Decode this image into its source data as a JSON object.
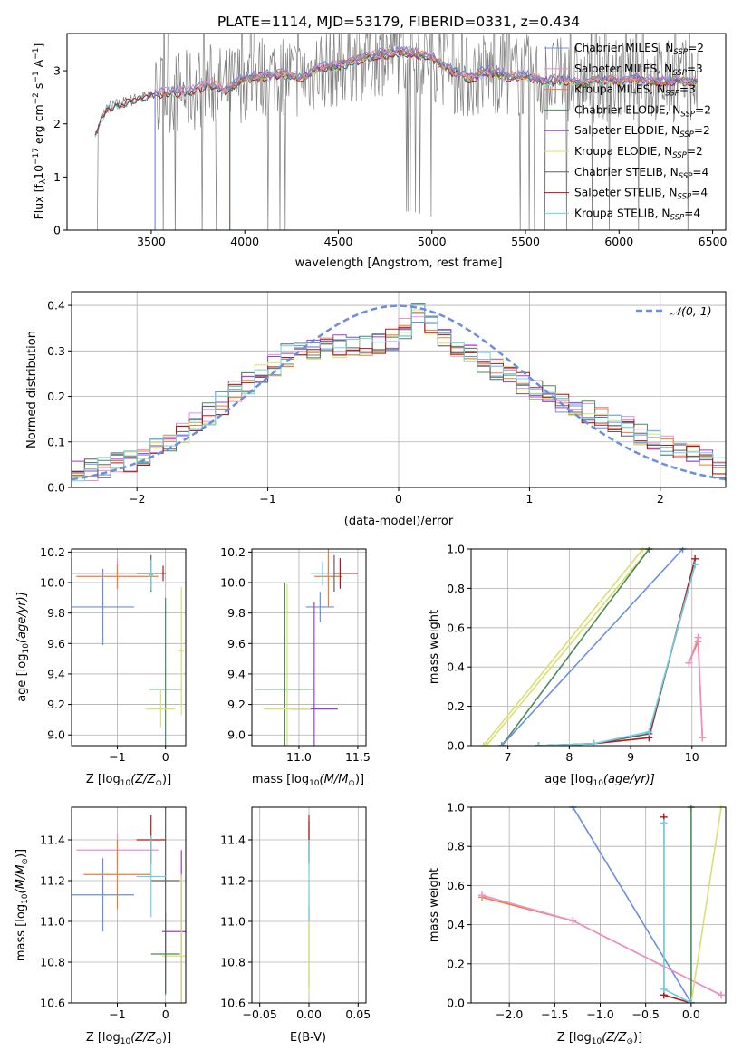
{
  "figure_title": "PLATE=1114, MJD=53179, FIBERID=0331, z=0.434",
  "series_colors": {
    "chabrier_miles": "#6a8fe0",
    "salpeter_miles": "#ee8fcc",
    "kroupa_miles": "#e8803a",
    "chabrier_elodie": "#4e8a5a",
    "salpeter_elodie": "#9a3fd0",
    "kroupa_elodie": "#d8e070",
    "chabrier_stelib": "#606060",
    "salpeter_stelib": "#b01818",
    "kroupa_stelib": "#70d0e0",
    "normal": "#6a8fe0",
    "data": "#808080"
  },
  "chart_data": [
    {
      "id": "spectrum",
      "type": "line",
      "xlabel": "wavelength [Angstrom, rest frame]",
      "ylabel": "Flux [f",
      "ylabel_sub": "λ",
      "ylabel_rest": "10",
      "ylabel_exp1": "−17",
      "ylabel_mid": " erg cm",
      "ylabel_exp2": "−2",
      "ylabel_mid2": " s",
      "ylabel_exp3": "−1",
      "ylabel_end": " A",
      "ylabel_exp4": "−1",
      "ylabel_close": "]",
      "xlim": [
        3050,
        6570
      ],
      "ylim": [
        0,
        3.7
      ],
      "xticks": [
        3500,
        4000,
        4500,
        5000,
        5500,
        6000,
        6500
      ],
      "yticks": [
        0,
        1,
        2,
        3
      ],
      "legend": [
        {
          "key": "chabrier_miles",
          "label": "Chabrier MILES, N",
          "sub": "SSP",
          "suffix": "=2"
        },
        {
          "key": "salpeter_miles",
          "label": "Salpeter MILES, N",
          "sub": "SSP",
          "suffix": "=3"
        },
        {
          "key": "kroupa_miles",
          "label": "Kroupa MILES, N",
          "sub": "SSP",
          "suffix": "=3"
        },
        {
          "key": "chabrier_elodie",
          "label": "Chabrier ELODIE, N",
          "sub": "SSP",
          "suffix": "=2"
        },
        {
          "key": "salpeter_elodie",
          "label": "Salpeter ELODIE, N",
          "sub": "SSP",
          "suffix": "=2"
        },
        {
          "key": "kroupa_elodie",
          "label": "Kroupa ELODIE, N",
          "sub": "SSP",
          "suffix": "=2"
        },
        {
          "key": "chabrier_stelib",
          "label": "Chabrier STELIB, N",
          "sub": "SSP",
          "suffix": "=4"
        },
        {
          "key": "salpeter_stelib",
          "label": "Salpeter STELIB, N",
          "sub": "SSP",
          "suffix": "=4"
        },
        {
          "key": "kroupa_stelib",
          "label": "Kroupa STELIB, N",
          "sub": "SSP",
          "suffix": "=4"
        }
      ],
      "continuum": [
        [
          3200,
          1.8
        ],
        [
          3260,
          2.3
        ],
        [
          3350,
          2.4
        ],
        [
          3450,
          2.5
        ],
        [
          3500,
          2.55
        ],
        [
          3600,
          2.6
        ],
        [
          3700,
          2.6
        ],
        [
          3800,
          2.75
        ],
        [
          3900,
          2.65
        ],
        [
          4000,
          2.85
        ],
        [
          4100,
          2.9
        ],
        [
          4200,
          2.95
        ],
        [
          4300,
          2.85
        ],
        [
          4400,
          3.05
        ],
        [
          4500,
          3.1
        ],
        [
          4600,
          3.2
        ],
        [
          4700,
          3.3
        ],
        [
          4800,
          3.35
        ],
        [
          4900,
          3.35
        ],
        [
          5000,
          3.25
        ],
        [
          5100,
          3.0
        ],
        [
          5200,
          2.85
        ],
        [
          5300,
          3.0
        ],
        [
          5400,
          2.9
        ],
        [
          5500,
          2.9
        ],
        [
          5600,
          2.8
        ],
        [
          5700,
          2.85
        ],
        [
          5800,
          2.75
        ],
        [
          5900,
          2.85
        ],
        [
          6000,
          2.8
        ],
        [
          6100,
          2.85
        ],
        [
          6200,
          2.8
        ],
        [
          6300,
          2.8
        ],
        [
          6420,
          2.8
        ]
      ]
    },
    {
      "id": "residuals",
      "type": "histogram",
      "xlabel": "(data-model)/error",
      "ylabel": "Normed distribution",
      "xlim": [
        -2.5,
        2.5
      ],
      "ylim": [
        0,
        0.43
      ],
      "xticks": [
        -2,
        -1,
        0,
        1,
        2
      ],
      "yticks": [
        0.0,
        0.1,
        0.2,
        0.3,
        0.4
      ],
      "legend_label": "𝒩(0, 1)",
      "envelope": [
        [
          -2.5,
          0.03
        ],
        [
          -2.0,
          0.06
        ],
        [
          -1.5,
          0.15
        ],
        [
          -1.2,
          0.22
        ],
        [
          -1.0,
          0.26
        ],
        [
          -0.8,
          0.3
        ],
        [
          -0.5,
          0.31
        ],
        [
          -0.2,
          0.31
        ],
        [
          0.0,
          0.33
        ],
        [
          0.15,
          0.38
        ],
        [
          0.4,
          0.31
        ],
        [
          0.7,
          0.27
        ],
        [
          1.0,
          0.22
        ],
        [
          1.3,
          0.18
        ],
        [
          1.6,
          0.15
        ],
        [
          2.0,
          0.1
        ],
        [
          2.5,
          0.04
        ]
      ]
    },
    {
      "id": "age_vs_Z",
      "type": "scatter",
      "xlabel": "Z [log",
      "xlabel_sub": "10",
      "xlabel_end": "(Z/Z",
      "xlabel_sun": "⊙",
      "xlabel_close": ")]",
      "ylabel": "age  [log",
      "ylabel_sub": "10",
      "ylabel_end": "(age/yr)]",
      "xlim": [
        -1.95,
        0.42
      ],
      "ylim": [
        8.93,
        10.22
      ],
      "xticks": [
        -1,
        0
      ],
      "yticks": [
        9.0,
        9.2,
        9.4,
        9.6,
        9.8,
        10.0,
        10.2
      ]
    },
    {
      "id": "age_vs_mass",
      "type": "scatter",
      "xlabel": "mass [log",
      "xlabel_sub": "10",
      "xlabel_end": "(M/M",
      "xlabel_sun": "⊙",
      "xlabel_close": ")]",
      "xlim": [
        10.6,
        11.57
      ],
      "ylim": [
        8.93,
        10.22
      ],
      "xticks": [
        11.0,
        11.5
      ],
      "yticks": [
        9.0,
        9.2,
        9.4,
        9.6,
        9.8,
        10.0,
        10.2
      ]
    },
    {
      "id": "weight_vs_age",
      "type": "line",
      "xlabel": "age  [log",
      "xlabel_sub": "10",
      "xlabel_end": "(age/yr)]",
      "ylabel": "mass weight",
      "xlim": [
        6.4,
        10.55
      ],
      "ylim": [
        0,
        1.0
      ],
      "xticks": [
        7,
        8,
        9,
        10
      ],
      "yticks": [
        0.0,
        0.2,
        0.4,
        0.6,
        0.8,
        1.0
      ]
    },
    {
      "id": "mass_vs_Z",
      "type": "scatter",
      "xlabel": "Z [log",
      "xlabel_sub": "10",
      "xlabel_end": "(Z/Z",
      "xlabel_sun": "⊙",
      "xlabel_close": ")]",
      "ylabel": "mass [log",
      "ylabel_sub": "10",
      "ylabel_end": "(M/M",
      "ylabel_sun": "⊙",
      "ylabel_close": ")]",
      "xlim": [
        -1.95,
        0.42
      ],
      "ylim": [
        10.6,
        11.56
      ],
      "xticks": [
        -1,
        0
      ],
      "yticks": [
        10.6,
        10.8,
        11.0,
        11.2,
        11.4
      ]
    },
    {
      "id": "mass_vs_ebv",
      "type": "scatter",
      "xlabel": "E(B-V)",
      "xlim": [
        -0.058,
        0.058
      ],
      "ylim": [
        10.6,
        11.56
      ],
      "xticks": [
        -0.05,
        0.0,
        0.05
      ],
      "yticks": [
        10.6,
        10.8,
        11.0,
        11.2,
        11.4
      ]
    },
    {
      "id": "weight_vs_Z",
      "type": "line",
      "xlabel": "Z [log",
      "xlabel_sub": "10",
      "xlabel_end": "(Z/Z",
      "xlabel_sun": "⊙",
      "xlabel_close": ")]",
      "ylabel": "mass weight",
      "xlim": [
        -2.42,
        0.38
      ],
      "ylim": [
        0,
        1.0
      ],
      "xticks": [
        -2.0,
        -1.5,
        -1.0,
        -0.5,
        0.0
      ],
      "yticks": [
        0.0,
        0.2,
        0.4,
        0.6,
        0.8,
        1.0
      ]
    }
  ],
  "points": {
    "age_vs_Z": [
      {
        "c": "chabrier_miles",
        "x": -1.3,
        "y": 9.84,
        "xe": 0.65,
        "ye": 0.25
      },
      {
        "c": "salpeter_miles",
        "x": -1.0,
        "y": 10.06,
        "xe": 0.95,
        "ye": 0.1
      },
      {
        "c": "kroupa_miles",
        "x": -1.0,
        "y": 10.04,
        "xe": 0.85,
        "ye": 0.08
      },
      {
        "c": "chabrier_elodie",
        "x": 0.0,
        "y": 9.3,
        "xe": 0.35,
        "ye": 0.6
      },
      {
        "c": "kroupa_elodie",
        "x": 0.33,
        "y": 9.55,
        "xe": 0.05,
        "ye": 0.42
      },
      {
        "c": "kroupa_elodie",
        "x": -0.1,
        "y": 9.17,
        "xe": 0.3,
        "ye": 0.12
      },
      {
        "c": "chabrier_stelib",
        "x": -0.3,
        "y": 10.06,
        "xe": 0.3,
        "ye": 0.12
      },
      {
        "c": "salpeter_stelib",
        "x": -0.05,
        "y": 10.06,
        "xe": 0.05,
        "ye": 0.05
      },
      {
        "c": "kroupa_stelib",
        "x": -0.3,
        "y": 10.05,
        "xe": 0.05,
        "ye": 0.1
      }
    ],
    "age_vs_mass": [
      {
        "c": "chabrier_miles",
        "x": 11.18,
        "y": 9.84,
        "xe": 0.12,
        "ye": 0.1
      },
      {
        "c": "salpeter_miles",
        "x": 11.25,
        "y": 10.06,
        "xe": 0.1,
        "ye": 0.08
      },
      {
        "c": "kroupa_miles",
        "x": 11.25,
        "y": 10.04,
        "xe": 0.12,
        "ye": 0.2
      },
      {
        "c": "chabrier_elodie",
        "x": 10.88,
        "y": 9.3,
        "xe": 0.25,
        "ye": 0.7
      },
      {
        "c": "salpeter_elodie",
        "x": 11.13,
        "y": 9.17,
        "xe": 0.2,
        "ye": 0.7
      },
      {
        "c": "kroupa_elodie",
        "x": 10.9,
        "y": 9.17,
        "xe": 0.2,
        "ye": 0.82
      },
      {
        "c": "chabrier_stelib",
        "x": 11.3,
        "y": 10.06,
        "xe": 0.2,
        "ye": 0.12
      },
      {
        "c": "salpeter_stelib",
        "x": 11.35,
        "y": 10.06,
        "xe": 0.15,
        "ye": 0.1
      },
      {
        "c": "kroupa_stelib",
        "x": 11.2,
        "y": 10.06,
        "xe": 0.1,
        "ye": 0.08
      }
    ],
    "mass_vs_Z": [
      {
        "c": "chabrier_miles",
        "x": -1.3,
        "y": 11.13,
        "xe": 0.65,
        "ye": 0.18
      },
      {
        "c": "salpeter_miles",
        "x": -1.0,
        "y": 11.35,
        "xe": 0.85,
        "ye": 0.08
      },
      {
        "c": "kroupa_miles",
        "x": -1.0,
        "y": 11.23,
        "xe": 0.7,
        "ye": 0.17
      },
      {
        "c": "chabrier_elodie",
        "x": 0.0,
        "y": 10.84,
        "xe": 0.3,
        "ye": 0.2
      },
      {
        "c": "salpeter_elodie",
        "x": 0.33,
        "y": 10.95,
        "xe": 0.4,
        "ye": 0.4
      },
      {
        "c": "kroupa_elodie",
        "x": 0.33,
        "y": 10.83,
        "xe": 0.4,
        "ye": 0.4
      },
      {
        "c": "chabrier_stelib",
        "x": 0.0,
        "y": 11.2,
        "xe": 0.3,
        "ye": 0.55
      },
      {
        "c": "salpeter_stelib",
        "x": -0.3,
        "y": 11.4,
        "xe": 0.3,
        "ye": 0.12
      },
      {
        "c": "kroupa_stelib",
        "x": -0.3,
        "y": 11.22,
        "xe": 0.3,
        "ye": 0.2
      }
    ],
    "mass_vs_ebv": [
      {
        "c": "chabrier_stelib",
        "x": 0.0,
        "y": 11.39,
        "xe": 0.0,
        "ye": 0.1
      },
      {
        "c": "salpeter_stelib",
        "x": 0.0,
        "y": 11.4,
        "xe": 0.0,
        "ye": 0.12
      },
      {
        "c": "chabrier_elodie",
        "x": 0.0,
        "y": 10.88,
        "xe": 0.0,
        "ye": 0.2
      },
      {
        "c": "kroupa_elodie",
        "x": 0.0,
        "y": 10.9,
        "xe": 0.0,
        "ye": 0.25
      },
      {
        "c": "kroupa_stelib",
        "x": 0.0,
        "y": 11.2,
        "xe": 0.0,
        "ye": 0.2
      }
    ]
  },
  "lines": {
    "weight_vs_age": [
      {
        "c": "kroupa_elodie",
        "pts": [
          [
            6.65,
            0.0
          ],
          [
            9.3,
            1.0
          ]
        ]
      },
      {
        "c": "kroupa_elodie",
        "pts": [
          [
            6.6,
            0.0
          ],
          [
            9.2,
            1.0
          ]
        ]
      },
      {
        "c": "chabrier_elodie",
        "pts": [
          [
            6.9,
            0.0
          ],
          [
            9.3,
            1.0
          ]
        ]
      },
      {
        "c": "chabrier_miles",
        "pts": [
          [
            6.9,
            0.0
          ],
          [
            9.85,
            1.0
          ]
        ]
      },
      {
        "c": "salpeter_stelib",
        "pts": [
          [
            7.5,
            0.0
          ],
          [
            8.4,
            0.01
          ],
          [
            9.3,
            0.04
          ],
          [
            10.05,
            0.95
          ]
        ]
      },
      {
        "c": "chabrier_stelib",
        "pts": [
          [
            7.5,
            0.0
          ],
          [
            8.4,
            0.01
          ],
          [
            9.3,
            0.06
          ],
          [
            10.05,
            0.92
          ]
        ]
      },
      {
        "c": "kroupa_stelib",
        "pts": [
          [
            7.5,
            0.0
          ],
          [
            8.4,
            0.01
          ],
          [
            9.3,
            0.07
          ],
          [
            10.05,
            0.92
          ]
        ]
      },
      {
        "c": "kroupa_miles",
        "pts": [
          [
            9.95,
            0.42
          ],
          [
            10.1,
            0.53
          ],
          [
            10.17,
            0.04
          ]
        ]
      },
      {
        "c": "salpeter_miles",
        "pts": [
          [
            9.95,
            0.42
          ],
          [
            10.1,
            0.55
          ],
          [
            10.17,
            0.04
          ]
        ]
      }
    ],
    "weight_vs_Z": [
      {
        "c": "chabrier_miles",
        "pts": [
          [
            -1.3,
            1.0
          ],
          [
            0.0,
            0.0
          ]
        ]
      },
      {
        "c": "kroupa_miles",
        "pts": [
          [
            -2.3,
            0.54
          ],
          [
            -1.3,
            0.42
          ],
          [
            0.33,
            0.04
          ]
        ]
      },
      {
        "c": "salpeter_miles",
        "pts": [
          [
            -2.3,
            0.55
          ],
          [
            -1.3,
            0.42
          ],
          [
            0.33,
            0.04
          ]
        ]
      },
      {
        "c": "chabrier_elodie",
        "pts": [
          [
            0.0,
            0.0
          ],
          [
            0.0,
            1.0
          ]
        ]
      },
      {
        "c": "kroupa_elodie",
        "pts": [
          [
            0.0,
            0.0
          ],
          [
            0.33,
            1.0
          ]
        ]
      },
      {
        "c": "salpeter_stelib",
        "pts": [
          [
            -0.3,
            0.95
          ],
          [
            -0.3,
            0.04
          ],
          [
            0.0,
            0.0
          ]
        ]
      },
      {
        "c": "kroupa_stelib",
        "pts": [
          [
            -0.3,
            0.92
          ],
          [
            -0.3,
            0.07
          ],
          [
            0.0,
            0.0
          ]
        ]
      }
    ]
  }
}
